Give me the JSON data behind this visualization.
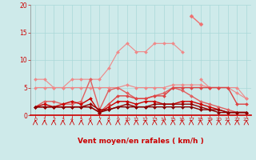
{
  "x": [
    0,
    1,
    2,
    3,
    4,
    5,
    6,
    7,
    8,
    9,
    10,
    11,
    12,
    13,
    14,
    15,
    16,
    17,
    18,
    19,
    20,
    21,
    22,
    23
  ],
  "series": [
    {
      "name": "rafales_pale",
      "color": "#f08888",
      "linewidth": 0.8,
      "marker": "D",
      "markersize": 2.0,
      "values": [
        6.5,
        6.5,
        5.0,
        5.0,
        6.5,
        6.5,
        6.5,
        6.5,
        8.5,
        11.5,
        13.0,
        11.5,
        11.5,
        13.0,
        13.0,
        13.0,
        11.5,
        null,
        6.5,
        5.0,
        5.0,
        5.0,
        5.0,
        3.0
      ]
    },
    {
      "name": "rafales_peak",
      "color": "#f07070",
      "linewidth": 1.0,
      "marker": "D",
      "markersize": 2.5,
      "values": [
        null,
        null,
        null,
        null,
        null,
        null,
        null,
        null,
        null,
        null,
        null,
        null,
        null,
        null,
        null,
        null,
        null,
        18.0,
        16.5,
        null,
        null,
        null,
        null,
        null
      ]
    },
    {
      "name": "moyen_pale",
      "color": "#f08888",
      "linewidth": 0.8,
      "marker": "D",
      "markersize": 2.0,
      "values": [
        5.0,
        5.0,
        5.0,
        5.0,
        5.0,
        5.0,
        5.0,
        5.0,
        5.0,
        5.0,
        5.5,
        5.0,
        5.0,
        5.0,
        5.0,
        5.5,
        5.5,
        5.5,
        5.5,
        5.0,
        5.0,
        5.0,
        4.0,
        3.0
      ]
    },
    {
      "name": "rafales_med",
      "color": "#e06060",
      "linewidth": 1.0,
      "marker": "D",
      "markersize": 2.0,
      "values": [
        1.5,
        2.5,
        2.5,
        2.0,
        2.0,
        2.5,
        6.5,
        1.0,
        4.5,
        5.0,
        4.0,
        3.0,
        3.0,
        3.5,
        4.0,
        5.0,
        4.5,
        3.5,
        2.5,
        2.0,
        1.5,
        1.0,
        0.5,
        0.5
      ]
    },
    {
      "name": "moyen_med",
      "color": "#dd4444",
      "linewidth": 1.0,
      "marker": "D",
      "markersize": 2.0,
      "values": [
        1.5,
        1.5,
        1.5,
        1.5,
        1.5,
        1.5,
        1.5,
        0.5,
        2.0,
        3.5,
        3.5,
        3.0,
        3.0,
        3.5,
        3.5,
        5.0,
        5.0,
        5.0,
        5.0,
        5.0,
        5.0,
        5.0,
        2.0,
        2.0
      ]
    },
    {
      "name": "moyen_dark1",
      "color": "#cc0000",
      "linewidth": 1.0,
      "marker": "D",
      "markersize": 2.0,
      "values": [
        1.5,
        2.0,
        1.5,
        2.0,
        2.5,
        2.0,
        3.0,
        0.5,
        1.5,
        2.5,
        2.5,
        2.0,
        2.5,
        2.5,
        2.0,
        2.0,
        2.5,
        2.5,
        2.0,
        1.5,
        1.0,
        0.5,
        0.5,
        0.5
      ]
    },
    {
      "name": "moyen_dark2",
      "color": "#990000",
      "linewidth": 1.0,
      "marker": "D",
      "markersize": 2.0,
      "values": [
        1.5,
        1.5,
        1.5,
        1.5,
        1.5,
        1.5,
        2.0,
        1.0,
        1.0,
        1.5,
        2.0,
        1.5,
        1.5,
        2.0,
        2.0,
        2.0,
        2.0,
        2.0,
        1.5,
        1.0,
        1.0,
        0.5,
        0.5,
        0.5
      ]
    },
    {
      "name": "base_dark",
      "color": "#880000",
      "linewidth": 1.0,
      "marker": "D",
      "markersize": 2.0,
      "values": [
        1.5,
        1.5,
        1.5,
        1.5,
        1.5,
        1.5,
        1.5,
        0.5,
        1.0,
        1.5,
        1.5,
        1.5,
        1.5,
        1.5,
        1.5,
        1.5,
        1.5,
        1.5,
        1.0,
        1.0,
        0.5,
        0.5,
        0.5,
        0.5
      ]
    }
  ],
  "wind_arrows": {
    "x": [
      0,
      1,
      2,
      3,
      4,
      5,
      6,
      7,
      8,
      9,
      10,
      11,
      12,
      13,
      14,
      15,
      16,
      17,
      18,
      19,
      20,
      21,
      22,
      23
    ],
    "angles_deg": [
      225,
      225,
      225,
      315,
      315,
      270,
      270,
      225,
      45,
      45,
      45,
      45,
      315,
      315,
      45,
      45,
      45,
      45,
      315,
      315,
      315,
      315,
      315,
      315
    ]
  },
  "xlabel": "Vent moyen/en rafales ( km/h )",
  "xlim": [
    -0.5,
    23.5
  ],
  "ylim": [
    0,
    20
  ],
  "yticks": [
    0,
    5,
    10,
    15,
    20
  ],
  "xticks": [
    0,
    1,
    2,
    3,
    4,
    5,
    6,
    7,
    8,
    9,
    10,
    11,
    12,
    13,
    14,
    15,
    16,
    17,
    18,
    19,
    20,
    21,
    22,
    23
  ],
  "bg_color": "#ceeaea",
  "grid_color": "#aad8d8",
  "tick_color": "#cc0000",
  "label_color": "#cc0000",
  "arrow_color": "#cc0000",
  "spine_left_color": "#888888",
  "spine_bottom_color": "#cc0000"
}
